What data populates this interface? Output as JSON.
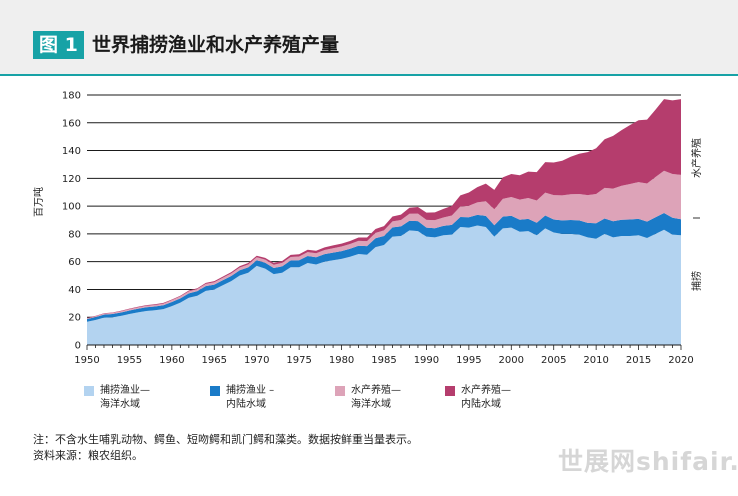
{
  "figure": {
    "label": "图 1",
    "title": "世界捕捞渔业和水产养殖产量"
  },
  "notes": {
    "note": "注：不含水生哺乳动物、鳄鱼、短吻鳄和凯门鳄和藻类。数据按鲜重当量表示。",
    "source": "资料来源：粮农组织。"
  },
  "watermark": "世展网shifair.",
  "colors": {
    "capture_marine": "#b3d3f0",
    "capture_inland": "#1a7bc8",
    "aqua_marine": "#dda3b8",
    "aqua_inland": "#b53d6d",
    "accent": "#17a2a6"
  },
  "chart_data": {
    "type": "area",
    "stacked": true,
    "ylabel": "百万吨",
    "ylim": [
      0,
      180
    ],
    "yticks": [
      0,
      20,
      40,
      60,
      80,
      100,
      120,
      140,
      160,
      180
    ],
    "xlim": [
      1950,
      2020
    ],
    "xticks": [
      1950,
      1955,
      1960,
      1965,
      1970,
      1975,
      1980,
      1985,
      1990,
      1995,
      2000,
      2005,
      2010,
      2015,
      2020
    ],
    "grid": "horizontal",
    "right_labels": {
      "aquaculture": "水产养殖",
      "capture": "捕捞"
    },
    "x": [
      1950,
      1951,
      1952,
      1953,
      1954,
      1955,
      1956,
      1957,
      1958,
      1959,
      1960,
      1961,
      1962,
      1963,
      1964,
      1965,
      1966,
      1967,
      1968,
      1969,
      1970,
      1971,
      1972,
      1973,
      1974,
      1975,
      1976,
      1977,
      1978,
      1979,
      1980,
      1981,
      1982,
      1983,
      1984,
      1985,
      1986,
      1987,
      1988,
      1989,
      1990,
      1991,
      1992,
      1993,
      1994,
      1995,
      1996,
      1997,
      1998,
      1999,
      2000,
      2001,
      2002,
      2003,
      2004,
      2005,
      2006,
      2007,
      2008,
      2009,
      2010,
      2011,
      2012,
      2013,
      2014,
      2015,
      2016,
      2017,
      2018,
      2019,
      2020
    ],
    "series": [
      {
        "name": "捕捞渔业–海洋水域",
        "legend": [
          "捕捞渔业—",
          "海洋水域"
        ],
        "values": [
          16.7,
          18.0,
          19.7,
          20.0,
          21.0,
          22.3,
          23.5,
          24.5,
          25.0,
          25.8,
          28.0,
          30.5,
          34.0,
          35.5,
          39.0,
          40.0,
          43.0,
          46.0,
          50.0,
          52.0,
          57.0,
          55.0,
          51.0,
          52.0,
          56.0,
          56.0,
          59.0,
          58.0,
          60.0,
          61.0,
          62.0,
          63.5,
          65.5,
          65.0,
          70.5,
          72.0,
          78.0,
          78.5,
          82.5,
          82.0,
          78.0,
          77.5,
          79.0,
          79.5,
          85.0,
          84.5,
          86.0,
          85.0,
          78.0,
          84.0,
          84.5,
          81.5,
          82.0,
          79.0,
          84.0,
          81.0,
          80.0,
          80.0,
          79.5,
          77.5,
          76.5,
          80.0,
          77.5,
          78.5,
          78.5,
          79.0,
          77.0,
          80.0,
          83.0,
          79.5,
          79.0
        ]
      },
      {
        "name": "捕捞渔业–内陆水域",
        "legend": [
          "捕捞渔业 –",
          "内陆水域"
        ],
        "values": [
          2.0,
          2.1,
          2.2,
          2.3,
          2.4,
          2.5,
          2.6,
          2.7,
          2.7,
          2.8,
          3.0,
          3.1,
          3.2,
          3.3,
          3.4,
          3.5,
          3.6,
          3.7,
          3.8,
          3.9,
          4.0,
          4.2,
          4.4,
          4.6,
          4.8,
          5.0,
          5.1,
          5.2,
          5.4,
          5.5,
          5.6,
          5.8,
          6.0,
          6.2,
          6.4,
          6.5,
          6.7,
          6.9,
          7.0,
          7.2,
          6.5,
          6.6,
          6.8,
          7.0,
          7.2,
          7.5,
          7.7,
          8.0,
          8.2,
          8.4,
          8.6,
          8.7,
          8.8,
          9.0,
          9.2,
          9.4,
          9.7,
          10.0,
          10.2,
          10.4,
          11.2,
          11.1,
          11.6,
          11.7,
          11.9,
          11.8,
          11.8,
          12.0,
          12.0,
          12.1,
          11.5
        ]
      },
      {
        "name": "水产养殖–海洋水域",
        "legend": [
          "水产养殖—",
          "海洋水域"
        ],
        "values": [
          0.5,
          0.6,
          0.7,
          0.8,
          0.9,
          1.0,
          1.0,
          1.1,
          1.1,
          1.2,
          1.3,
          1.4,
          1.4,
          1.5,
          1.6,
          1.7,
          1.8,
          1.9,
          2.0,
          2.1,
          2.2,
          2.3,
          2.4,
          2.5,
          2.6,
          2.7,
          2.8,
          2.9,
          3.0,
          3.2,
          3.3,
          3.4,
          3.5,
          3.6,
          3.8,
          4.0,
          4.3,
          4.6,
          5.0,
          5.4,
          5.6,
          5.8,
          6.0,
          6.7,
          7.5,
          8.3,
          9.0,
          10.5,
          11.5,
          12.8,
          13.5,
          14.5,
          15.0,
          16.0,
          16.5,
          17.5,
          18.0,
          18.5,
          19.0,
          20.0,
          21.0,
          22.0,
          23.5,
          24.5,
          25.5,
          26.5,
          27.5,
          29.0,
          30.5,
          31.5,
          32.0
        ]
      },
      {
        "name": "水产养殖–内陆水域",
        "legend": [
          "水产养殖—",
          "内陆水域"
        ],
        "values": [
          0.3,
          0.3,
          0.3,
          0.3,
          0.4,
          0.4,
          0.4,
          0.4,
          0.5,
          0.5,
          0.5,
          0.5,
          0.6,
          0.6,
          0.7,
          0.8,
          0.8,
          0.9,
          1.0,
          1.0,
          1.1,
          1.2,
          1.3,
          1.4,
          1.5,
          1.6,
          1.7,
          1.8,
          1.9,
          2.0,
          2.1,
          2.2,
          2.4,
          2.6,
          2.8,
          3.1,
          3.5,
          3.9,
          4.3,
          4.8,
          5.2,
          5.6,
          6.2,
          7.0,
          8.0,
          9.5,
          11.0,
          12.7,
          14.0,
          15.5,
          16.5,
          17.5,
          19.0,
          20.5,
          22.0,
          23.5,
          25.0,
          27.0,
          29.0,
          31.0,
          33.0,
          35.0,
          38.0,
          40.0,
          42.5,
          44.5,
          46.0,
          48.5,
          51.5,
          53.0,
          54.5
        ]
      }
    ]
  }
}
